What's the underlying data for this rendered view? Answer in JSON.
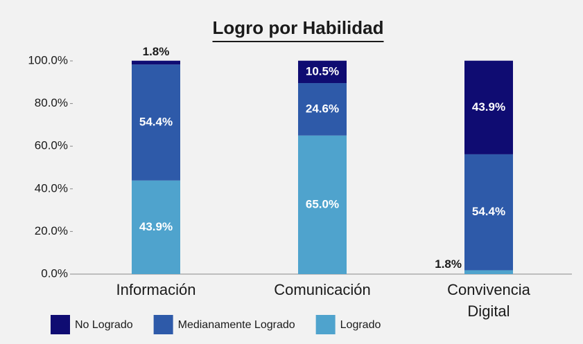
{
  "chart_data": {
    "type": "stacked_bar",
    "title": "Logro por Habilidad",
    "categories": [
      "Información",
      "Comunicación",
      "Convivencia Digital"
    ],
    "series": [
      {
        "name": "No Logrado",
        "color": "#0f0c72",
        "values": [
          1.8,
          10.5,
          43.9
        ],
        "value_labels": [
          "1.8%",
          "10.5%",
          "43.9%"
        ]
      },
      {
        "name": "Medianamente Logrado",
        "color": "#2e5aa9",
        "values": [
          54.4,
          24.6,
          54.4
        ],
        "value_labels": [
          "54.4%",
          "24.6%",
          "54.4%"
        ]
      },
      {
        "name": "Logrado",
        "color": "#4fa3cd",
        "values": [
          43.9,
          65.0,
          1.8
        ],
        "value_labels": [
          "43.9%",
          "65.0%",
          "1.8%"
        ]
      }
    ],
    "ylim": [
      0,
      100
    ],
    "yticks": [
      {
        "value": 0,
        "label": "0.0%"
      },
      {
        "value": 20,
        "label": "20.0%"
      },
      {
        "value": 40,
        "label": "40.0%"
      },
      {
        "value": 60,
        "label": "60.0%"
      },
      {
        "value": 80,
        "label": "80.0%"
      },
      {
        "value": 100,
        "label": "100.0%"
      }
    ],
    "legend": "bottom"
  }
}
